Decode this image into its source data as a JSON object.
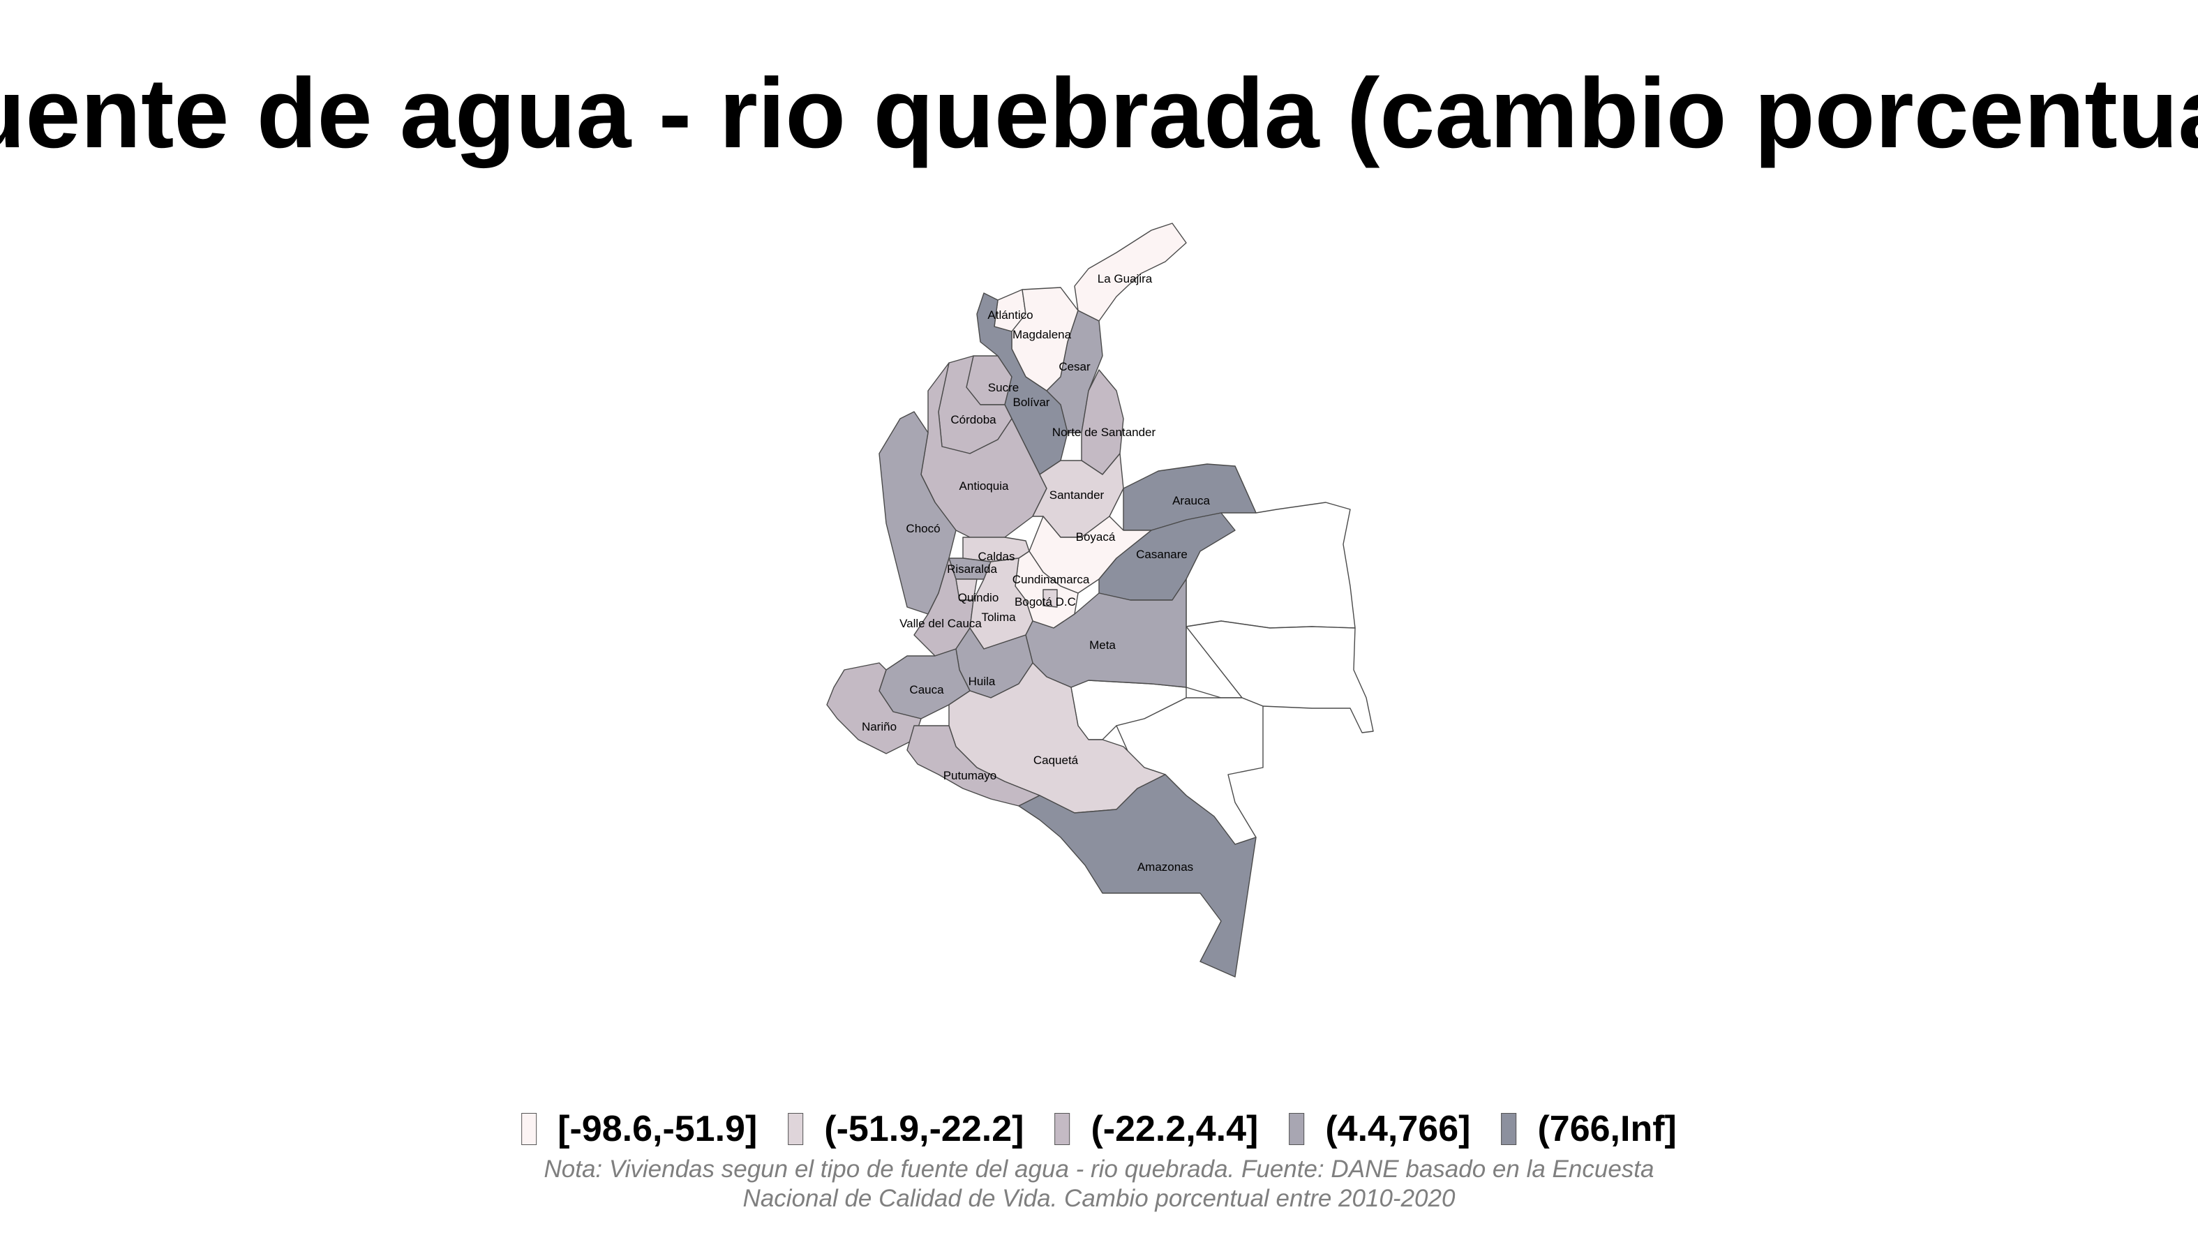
{
  "title": "uente de agua - rio quebrada (cambio porcentua",
  "legend": {
    "items": [
      {
        "label": "[-98.6,-51.9]",
        "color": "#fcf4f4"
      },
      {
        "label": "(-51.9,-22.2]",
        "color": "#dfd5da"
      },
      {
        "label": "(-22.2,4.4]",
        "color": "#c4bac4"
      },
      {
        "label": "(4.4,766]",
        "color": "#a8a6b2"
      },
      {
        "label": "(766,Inf]",
        "color": "#8c909e"
      }
    ]
  },
  "caption": {
    "line1": "Nota: Viviendas segun el tipo de fuente del agua - rio quebrada. Fuente: DANE basado en la Encuesta",
    "line2": "Nacional de Calidad de Vida. Cambio porcentual entre 2010-2020"
  },
  "no_data_color": "#ffffff",
  "departments": [
    {
      "name": "La Guajira",
      "cls": 0
    },
    {
      "name": "Atlántico",
      "cls": 0
    },
    {
      "name": "Magdalena",
      "cls": 0
    },
    {
      "name": "Cesar",
      "cls": 3
    },
    {
      "name": "Sucre",
      "cls": 2
    },
    {
      "name": "Bolívar",
      "cls": 4
    },
    {
      "name": "Córdoba",
      "cls": 2
    },
    {
      "name": "Norte de Santander",
      "cls": 2
    },
    {
      "name": "Antioquia",
      "cls": 2
    },
    {
      "name": "Santander",
      "cls": 1
    },
    {
      "name": "Arauca",
      "cls": 4
    },
    {
      "name": "Chocó",
      "cls": 3
    },
    {
      "name": "Boyacá",
      "cls": 0
    },
    {
      "name": "Casanare",
      "cls": 4
    },
    {
      "name": "Caldas",
      "cls": 1
    },
    {
      "name": "Risaralda",
      "cls": 3
    },
    {
      "name": "Cundinamarca",
      "cls": 0
    },
    {
      "name": "Quindio",
      "cls": 1
    },
    {
      "name": "Bogotá D.C",
      "cls": 1
    },
    {
      "name": "Valle del Cauca",
      "cls": 2
    },
    {
      "name": "Tolima",
      "cls": 1
    },
    {
      "name": "Meta",
      "cls": 3
    },
    {
      "name": "Huila",
      "cls": 3
    },
    {
      "name": "Cauca",
      "cls": 3
    },
    {
      "name": "Nariño",
      "cls": 2
    },
    {
      "name": "Caquetá",
      "cls": 1
    },
    {
      "name": "Putumayo",
      "cls": 2
    },
    {
      "name": "Amazonas",
      "cls": 4
    }
  ]
}
